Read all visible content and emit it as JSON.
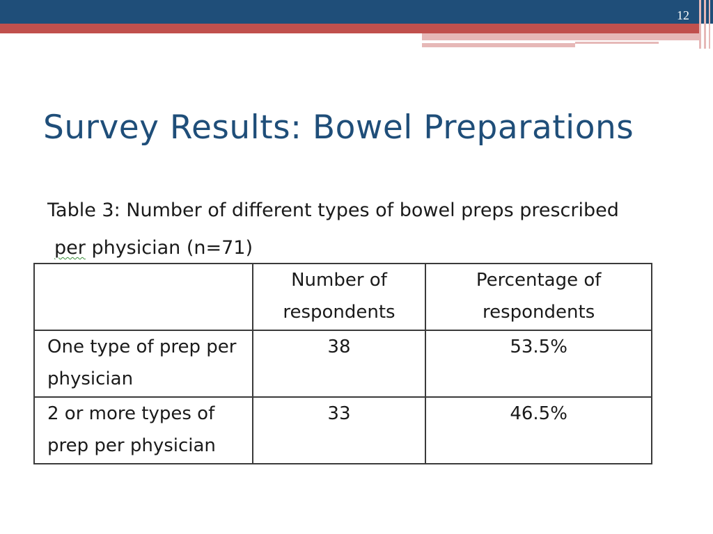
{
  "slide": {
    "number": "12",
    "title": "Survey Results: Bowel Preparations"
  },
  "caption": {
    "line1": "Table 3: Number of different types of bowel preps prescribed",
    "line2_word1": "per",
    "line2_rest": " physician (n=71)"
  },
  "table": {
    "headers": [
      "",
      "Number of respondents",
      "Percentage of respondents"
    ],
    "rows": [
      {
        "label": "One type of prep per physician",
        "count": "38",
        "percent": "53.5%"
      },
      {
        "label": "2 or more types of prep per physician",
        "count": "33",
        "percent": "46.5%"
      }
    ]
  },
  "colors": {
    "navy": "#1f4e79",
    "red": "#c0504d",
    "pink": "#e6b8b7"
  }
}
